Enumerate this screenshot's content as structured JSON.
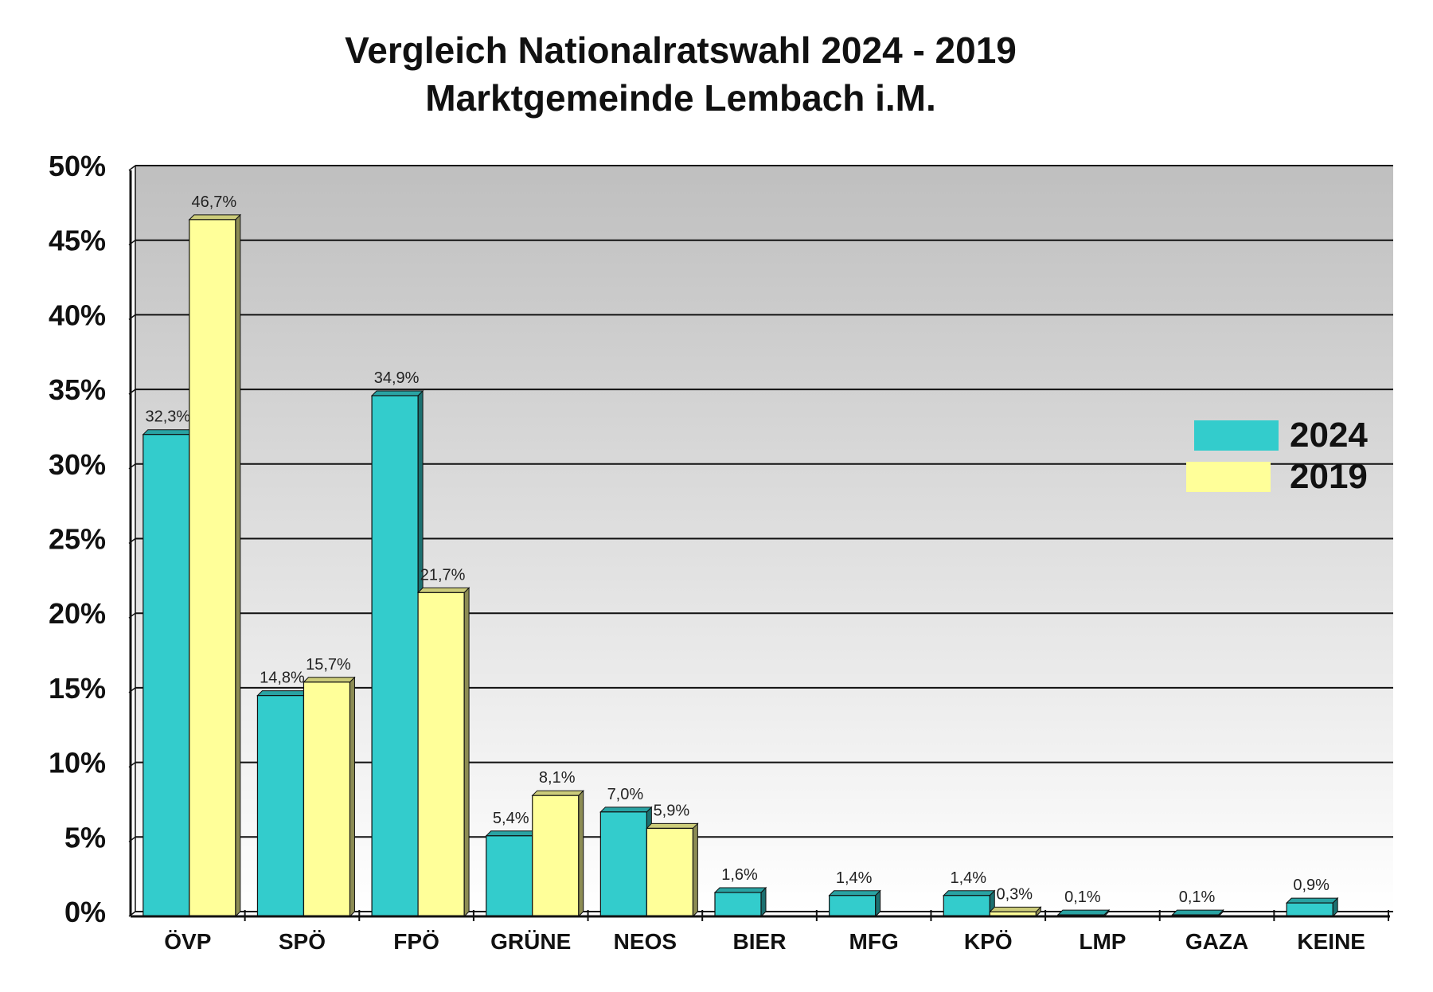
{
  "chart_data": {
    "type": "bar",
    "title": "Vergleich Nationalratswahl 2024 - 2019",
    "subtitle": "Marktgemeinde Lembach i.M.",
    "xlabel": "",
    "ylabel": "",
    "ylim": [
      0,
      50
    ],
    "yticks": [
      "0%",
      "5%",
      "10%",
      "15%",
      "20%",
      "25%",
      "30%",
      "35%",
      "40%",
      "45%",
      "50%"
    ],
    "grid": true,
    "legend_position": "right",
    "categories": [
      "ÖVP",
      "SPÖ",
      "FPÖ",
      "GRÜNE",
      "NEOS",
      "BIER",
      "MFG",
      "KPÖ",
      "LMP",
      "GAZA",
      "KEINE"
    ],
    "series": [
      {
        "name": "2024",
        "color": "#33CCCC",
        "values": [
          32.3,
          14.8,
          34.9,
          5.4,
          7.0,
          1.6,
          1.4,
          1.4,
          0.1,
          0.1,
          0.9
        ],
        "labels": [
          "32,3%",
          "14,8%",
          "34,9%",
          "5,4%",
          "7,0%",
          "1,6%",
          "1,4%",
          "1,4%",
          "0,1%",
          "0,1%",
          "0,9%"
        ]
      },
      {
        "name": "2019",
        "color": "#FFFF99",
        "values": [
          46.7,
          15.7,
          21.7,
          8.1,
          5.9,
          null,
          null,
          0.3,
          null,
          null,
          null
        ],
        "labels": [
          "46,7%",
          "15,7%",
          "21,7%",
          "8,1%",
          "5,9%",
          null,
          null,
          "0,3%",
          null,
          null,
          null
        ]
      }
    ]
  }
}
